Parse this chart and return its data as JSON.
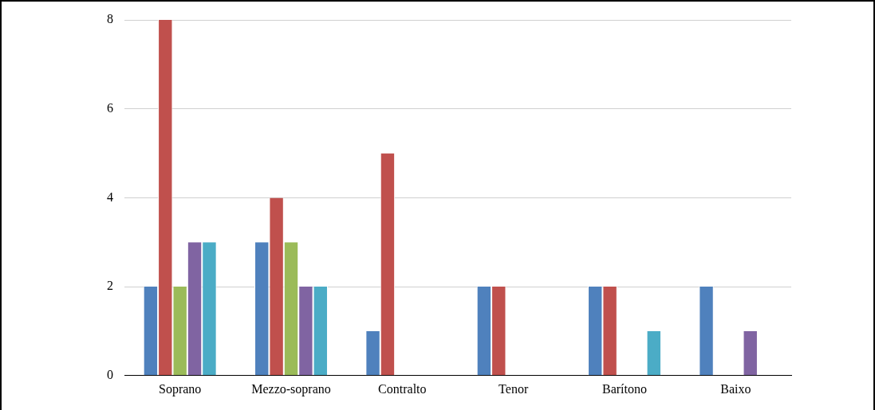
{
  "chart_data": {
    "type": "bar",
    "categories": [
      "Soprano",
      "Mezzo-soprano",
      "Contralto",
      "Tenor",
      "Barítono",
      "Baixo"
    ],
    "series": [
      {
        "color": "#4f81bd",
        "values": [
          2,
          3,
          1,
          2,
          2,
          2
        ]
      },
      {
        "color": "#c0504d",
        "values": [
          8,
          4,
          5,
          2,
          2,
          0
        ]
      },
      {
        "color": "#9bbb59",
        "values": [
          2,
          3,
          0,
          0,
          0,
          0
        ]
      },
      {
        "color": "#8064a2",
        "values": [
          3,
          2,
          0,
          0,
          0,
          1
        ]
      },
      {
        "color": "#4bacc6",
        "values": [
          3,
          2,
          0,
          0,
          1,
          0
        ]
      }
    ],
    "ylim": [
      0,
      8
    ],
    "yticks": [
      0,
      2,
      4,
      6,
      8
    ],
    "grid": "y",
    "legend": false
  }
}
